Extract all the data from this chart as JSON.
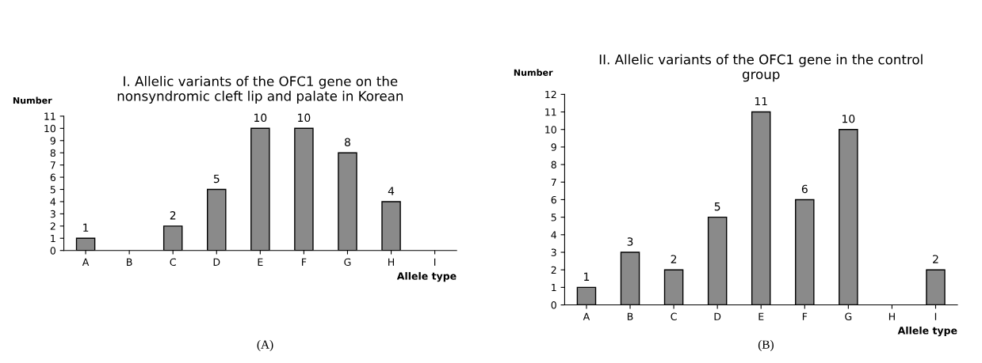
{
  "chart_data": [
    {
      "type": "bar",
      "title": "I. Allelic variants of the OFC1 gene on the\nnonsyndromic cleft lip and palate in Korean",
      "xlabel": "Allele type",
      "ylabel": "Number",
      "categories": [
        "A",
        "B",
        "C",
        "D",
        "E",
        "F",
        "G",
        "H",
        "I"
      ],
      "values": [
        1,
        null,
        2,
        5,
        10,
        10,
        8,
        4,
        null
      ],
      "color": "#8a8a8a",
      "ylim": [
        0,
        11
      ],
      "yticks": [
        0,
        1,
        2,
        3,
        4,
        5,
        6,
        7,
        8,
        9,
        10,
        11
      ],
      "data_labels": true,
      "grid": false,
      "annotations": [
        "(A)"
      ]
    },
    {
      "type": "bar",
      "title": "II. Allelic variants of the OFC1 gene in the control\ngroup",
      "xlabel": "Allele type",
      "ylabel": "Number",
      "categories": [
        "A",
        "B",
        "C",
        "D",
        "E",
        "F",
        "G",
        "H",
        "I"
      ],
      "values": [
        1,
        3,
        2,
        5,
        11,
        6,
        10,
        null,
        2
      ],
      "color": "#8a8a8a",
      "ylim": [
        0,
        12
      ],
      "yticks": [
        0,
        1,
        2,
        3,
        4,
        5,
        6,
        7,
        8,
        9,
        10,
        11,
        12
      ],
      "data_labels": true,
      "grid": false,
      "annotations": [
        "(B)"
      ]
    }
  ]
}
